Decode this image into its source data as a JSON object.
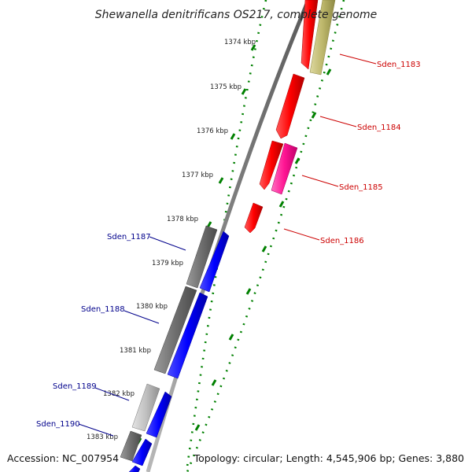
{
  "title": "Shewanella denitrificans OS217, complete genome",
  "footer": {
    "accession": "Accession: NC_007954",
    "summary": "Topology: circular; Length: 4,545,906 bp; Genes: 3,880"
  },
  "ticks": [
    "1374 kbp",
    "1375 kbp",
    "1376 kbp",
    "1377 kbp",
    "1378 kbp",
    "1379 kbp",
    "1380 kbp",
    "1381 kbp",
    "1382 kbp",
    "1383 kbp"
  ],
  "genes_right": [
    "Sden_1183",
    "Sden_1184",
    "Sden_1185",
    "Sden_1186"
  ],
  "genes_left": [
    "Sden_1187",
    "Sden_1188",
    "Sden_1189",
    "Sden_1190"
  ],
  "colors": {
    "red_gene": "#ff0000",
    "magenta_gene": "#ff1493",
    "khaki_gene": "#bdb76b",
    "blue_gene": "#0000ff",
    "gray_gene": "#808080",
    "light_gray_gene": "#c0c0c0",
    "backbone": "#808080",
    "tick_green": "#008000",
    "right_label": "#cc0000",
    "left_label": "#00008b"
  }
}
